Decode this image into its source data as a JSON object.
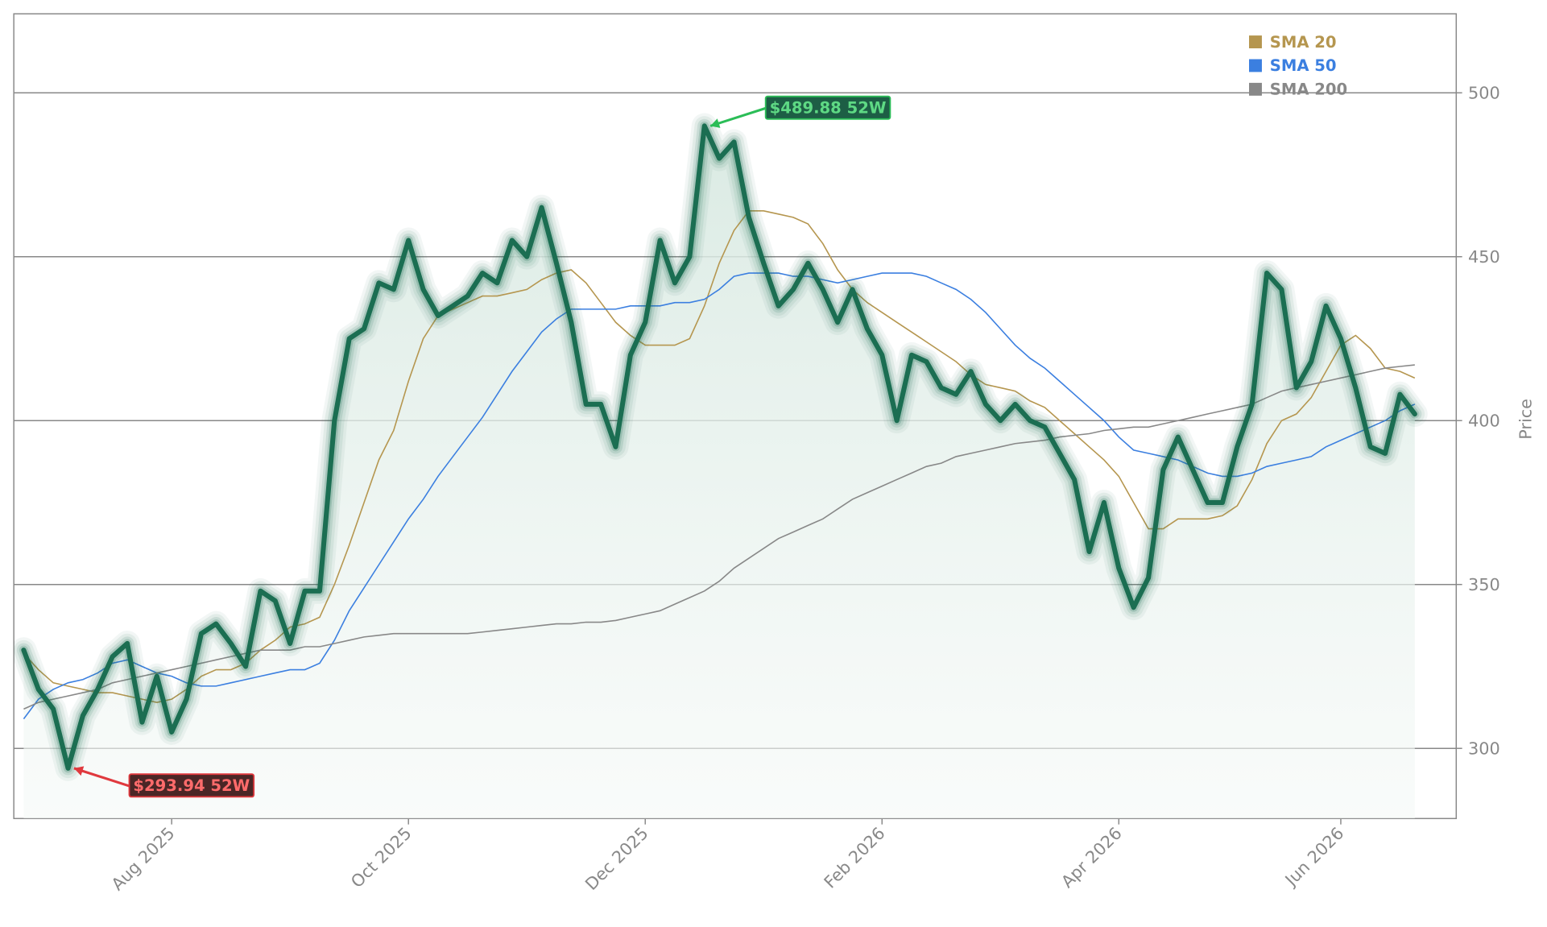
{
  "chart_data": {
    "type": "line",
    "y_label": "Price",
    "categories": [
      null,
      null,
      null,
      null,
      null,
      null,
      null,
      null,
      null,
      null,
      "Aug 2025",
      null,
      null,
      null,
      null,
      null,
      null,
      null,
      null,
      null,
      null,
      null,
      null,
      null,
      null,
      null,
      "Oct 2025",
      null,
      null,
      null,
      null,
      null,
      null,
      null,
      null,
      null,
      null,
      null,
      null,
      null,
      null,
      null,
      "Dec 2025",
      null,
      null,
      null,
      null,
      null,
      null,
      null,
      null,
      null,
      null,
      null,
      null,
      null,
      null,
      null,
      "Feb 2026",
      null,
      null,
      null,
      null,
      null,
      null,
      null,
      null,
      null,
      null,
      null,
      null,
      null,
      null,
      null,
      "Apr 2026",
      null,
      null,
      null,
      null,
      null,
      null,
      null,
      null,
      null,
      null,
      null,
      null,
      null,
      null,
      "Jun 2026",
      null,
      null,
      null,
      null,
      null
    ],
    "series": [
      {
        "name": "Price",
        "color": "#1b6e52",
        "values": [
          330,
          318,
          312,
          293.94,
          310,
          318,
          328,
          332,
          308,
          322,
          305,
          315,
          335,
          338,
          332,
          325,
          348,
          345,
          332,
          348,
          348,
          400,
          425,
          428,
          442,
          440,
          455,
          440,
          432,
          435,
          438,
          445,
          442,
          455,
          450,
          465,
          448,
          430,
          405,
          405,
          392,
          420,
          430,
          455,
          442,
          450,
          489.88,
          480,
          485,
          462,
          448,
          435,
          440,
          448,
          440,
          430,
          440,
          428,
          420,
          400,
          420,
          418,
          410,
          408,
          415,
          405,
          400,
          405,
          400,
          398,
          390,
          382,
          360,
          375,
          355,
          343,
          352,
          385,
          395,
          385,
          375,
          375,
          392,
          405,
          445,
          440,
          410,
          418,
          435,
          425,
          410,
          392,
          390,
          408,
          402
        ]
      },
      {
        "name": "SMA 20",
        "color": "#b5964f",
        "values": [
          329,
          324,
          320,
          319,
          318,
          317,
          317,
          316,
          315,
          314,
          315,
          318,
          322,
          324,
          324,
          326,
          330,
          333,
          337,
          338,
          340,
          350,
          362,
          375,
          388,
          397,
          412,
          425,
          432,
          434,
          436,
          438,
          438,
          439,
          440,
          443,
          445,
          446,
          442,
          436,
          430,
          426,
          423,
          423,
          423,
          425,
          435,
          448,
          458,
          464,
          464,
          463,
          462,
          460,
          454,
          446,
          440,
          436,
          433,
          430,
          427,
          424,
          421,
          418,
          414,
          411,
          410,
          409,
          406,
          404,
          400,
          396,
          392,
          388,
          383,
          375,
          367,
          367,
          370,
          370,
          370,
          371,
          374,
          382,
          393,
          400,
          402,
          407,
          415,
          423,
          426,
          422,
          416,
          415,
          413
        ]
      },
      {
        "name": "SMA 50",
        "color": "#3b7fe0",
        "values": [
          309,
          315,
          318,
          320,
          321,
          323,
          326,
          327,
          325,
          323,
          322,
          320,
          319,
          319,
          320,
          321,
          322,
          323,
          324,
          324,
          326,
          333,
          342,
          349,
          356,
          363,
          370,
          376,
          383,
          389,
          395,
          401,
          408,
          415,
          421,
          427,
          431,
          434,
          434,
          434,
          434,
          435,
          435,
          435,
          436,
          436,
          437,
          440,
          444,
          445,
          445,
          445,
          444,
          444,
          443,
          442,
          443,
          444,
          445,
          445,
          445,
          444,
          442,
          440,
          437,
          433,
          428,
          423,
          419,
          416,
          412,
          408,
          404,
          400,
          395,
          391,
          390,
          389,
          388,
          386,
          384,
          383,
          383,
          384,
          386,
          387,
          388,
          389,
          392,
          394,
          396,
          398,
          400,
          403,
          405
        ]
      },
      {
        "name": "SMA 200",
        "color": "#888888",
        "values": [
          312,
          314,
          315,
          316,
          317,
          318,
          320,
          321,
          322,
          323,
          324,
          325,
          326,
          327,
          328,
          329,
          330,
          330,
          330,
          331,
          331,
          332,
          333,
          334,
          334.5,
          335,
          335,
          335,
          335,
          335,
          335,
          335.5,
          336,
          336.5,
          337,
          337.5,
          338,
          338,
          338.5,
          338.5,
          339,
          340,
          341,
          342,
          344,
          346,
          348,
          351,
          355,
          358,
          361,
          364,
          366,
          368,
          370,
          373,
          376,
          378,
          380,
          382,
          384,
          386,
          387,
          389,
          390,
          391,
          392,
          393,
          393.5,
          394,
          395,
          395.5,
          396,
          397,
          397.5,
          398,
          398,
          399,
          400,
          401,
          402,
          403,
          404,
          405,
          407,
          409,
          410,
          411,
          412,
          413,
          414,
          415,
          416,
          416.5,
          417
        ]
      }
    ],
    "annotations": [
      "$489.88 52W",
      "$293.94 52W"
    ],
    "ylim": [
      278.6,
      524.1
    ],
    "yticks": [
      300,
      350,
      400,
      450,
      500
    ],
    "grid": true,
    "legend": "upper right"
  }
}
